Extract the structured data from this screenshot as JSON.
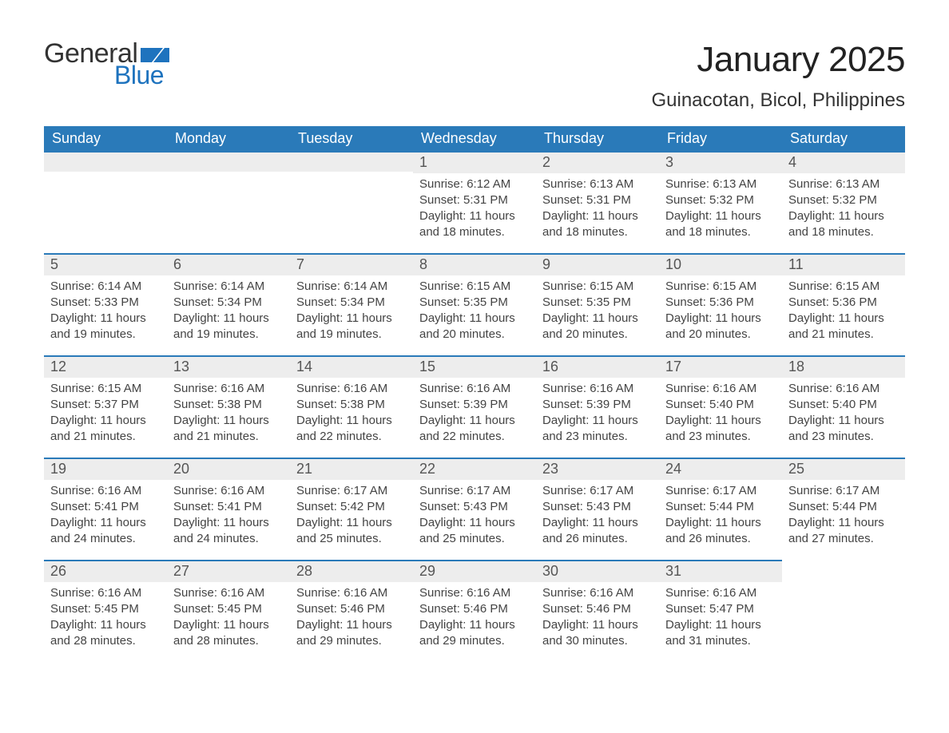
{
  "brand": {
    "word1": "General",
    "word2": "Blue",
    "flag_color": "#1e73be",
    "text_color": "#333333"
  },
  "header": {
    "title": "January 2025",
    "location": "Guinacotan, Bicol, Philippines"
  },
  "styling": {
    "header_bg": "#2a7ab9",
    "header_text": "#ffffff",
    "daybar_bg": "#ededed",
    "daybar_border": "#2a7ab9",
    "body_text": "#444444",
    "page_bg": "#ffffff",
    "font_family": "Helvetica Neue, Helvetica, Arial, sans-serif",
    "title_fontsize_pt": 33,
    "subtitle_fontsize_pt": 18,
    "weekday_fontsize_pt": 14,
    "daynum_fontsize_pt": 14,
    "body_fontsize_pt": 11
  },
  "calendar": {
    "weekday_labels": [
      "Sunday",
      "Monday",
      "Tuesday",
      "Wednesday",
      "Thursday",
      "Friday",
      "Saturday"
    ],
    "weeks": [
      [
        {
          "empty": true
        },
        {
          "empty": true
        },
        {
          "empty": true
        },
        {
          "day": "1",
          "sunrise": "Sunrise: 6:12 AM",
          "sunset": "Sunset: 5:31 PM",
          "daylight1": "Daylight: 11 hours",
          "daylight2": "and 18 minutes."
        },
        {
          "day": "2",
          "sunrise": "Sunrise: 6:13 AM",
          "sunset": "Sunset: 5:31 PM",
          "daylight1": "Daylight: 11 hours",
          "daylight2": "and 18 minutes."
        },
        {
          "day": "3",
          "sunrise": "Sunrise: 6:13 AM",
          "sunset": "Sunset: 5:32 PM",
          "daylight1": "Daylight: 11 hours",
          "daylight2": "and 18 minutes."
        },
        {
          "day": "4",
          "sunrise": "Sunrise: 6:13 AM",
          "sunset": "Sunset: 5:32 PM",
          "daylight1": "Daylight: 11 hours",
          "daylight2": "and 18 minutes."
        }
      ],
      [
        {
          "day": "5",
          "sunrise": "Sunrise: 6:14 AM",
          "sunset": "Sunset: 5:33 PM",
          "daylight1": "Daylight: 11 hours",
          "daylight2": "and 19 minutes."
        },
        {
          "day": "6",
          "sunrise": "Sunrise: 6:14 AM",
          "sunset": "Sunset: 5:34 PM",
          "daylight1": "Daylight: 11 hours",
          "daylight2": "and 19 minutes."
        },
        {
          "day": "7",
          "sunrise": "Sunrise: 6:14 AM",
          "sunset": "Sunset: 5:34 PM",
          "daylight1": "Daylight: 11 hours",
          "daylight2": "and 19 minutes."
        },
        {
          "day": "8",
          "sunrise": "Sunrise: 6:15 AM",
          "sunset": "Sunset: 5:35 PM",
          "daylight1": "Daylight: 11 hours",
          "daylight2": "and 20 minutes."
        },
        {
          "day": "9",
          "sunrise": "Sunrise: 6:15 AM",
          "sunset": "Sunset: 5:35 PM",
          "daylight1": "Daylight: 11 hours",
          "daylight2": "and 20 minutes."
        },
        {
          "day": "10",
          "sunrise": "Sunrise: 6:15 AM",
          "sunset": "Sunset: 5:36 PM",
          "daylight1": "Daylight: 11 hours",
          "daylight2": "and 20 minutes."
        },
        {
          "day": "11",
          "sunrise": "Sunrise: 6:15 AM",
          "sunset": "Sunset: 5:36 PM",
          "daylight1": "Daylight: 11 hours",
          "daylight2": "and 21 minutes."
        }
      ],
      [
        {
          "day": "12",
          "sunrise": "Sunrise: 6:15 AM",
          "sunset": "Sunset: 5:37 PM",
          "daylight1": "Daylight: 11 hours",
          "daylight2": "and 21 minutes."
        },
        {
          "day": "13",
          "sunrise": "Sunrise: 6:16 AM",
          "sunset": "Sunset: 5:38 PM",
          "daylight1": "Daylight: 11 hours",
          "daylight2": "and 21 minutes."
        },
        {
          "day": "14",
          "sunrise": "Sunrise: 6:16 AM",
          "sunset": "Sunset: 5:38 PM",
          "daylight1": "Daylight: 11 hours",
          "daylight2": "and 22 minutes."
        },
        {
          "day": "15",
          "sunrise": "Sunrise: 6:16 AM",
          "sunset": "Sunset: 5:39 PM",
          "daylight1": "Daylight: 11 hours",
          "daylight2": "and 22 minutes."
        },
        {
          "day": "16",
          "sunrise": "Sunrise: 6:16 AM",
          "sunset": "Sunset: 5:39 PM",
          "daylight1": "Daylight: 11 hours",
          "daylight2": "and 23 minutes."
        },
        {
          "day": "17",
          "sunrise": "Sunrise: 6:16 AM",
          "sunset": "Sunset: 5:40 PM",
          "daylight1": "Daylight: 11 hours",
          "daylight2": "and 23 minutes."
        },
        {
          "day": "18",
          "sunrise": "Sunrise: 6:16 AM",
          "sunset": "Sunset: 5:40 PM",
          "daylight1": "Daylight: 11 hours",
          "daylight2": "and 23 minutes."
        }
      ],
      [
        {
          "day": "19",
          "sunrise": "Sunrise: 6:16 AM",
          "sunset": "Sunset: 5:41 PM",
          "daylight1": "Daylight: 11 hours",
          "daylight2": "and 24 minutes."
        },
        {
          "day": "20",
          "sunrise": "Sunrise: 6:16 AM",
          "sunset": "Sunset: 5:41 PM",
          "daylight1": "Daylight: 11 hours",
          "daylight2": "and 24 minutes."
        },
        {
          "day": "21",
          "sunrise": "Sunrise: 6:17 AM",
          "sunset": "Sunset: 5:42 PM",
          "daylight1": "Daylight: 11 hours",
          "daylight2": "and 25 minutes."
        },
        {
          "day": "22",
          "sunrise": "Sunrise: 6:17 AM",
          "sunset": "Sunset: 5:43 PM",
          "daylight1": "Daylight: 11 hours",
          "daylight2": "and 25 minutes."
        },
        {
          "day": "23",
          "sunrise": "Sunrise: 6:17 AM",
          "sunset": "Sunset: 5:43 PM",
          "daylight1": "Daylight: 11 hours",
          "daylight2": "and 26 minutes."
        },
        {
          "day": "24",
          "sunrise": "Sunrise: 6:17 AM",
          "sunset": "Sunset: 5:44 PM",
          "daylight1": "Daylight: 11 hours",
          "daylight2": "and 26 minutes."
        },
        {
          "day": "25",
          "sunrise": "Sunrise: 6:17 AM",
          "sunset": "Sunset: 5:44 PM",
          "daylight1": "Daylight: 11 hours",
          "daylight2": "and 27 minutes."
        }
      ],
      [
        {
          "day": "26",
          "sunrise": "Sunrise: 6:16 AM",
          "sunset": "Sunset: 5:45 PM",
          "daylight1": "Daylight: 11 hours",
          "daylight2": "and 28 minutes."
        },
        {
          "day": "27",
          "sunrise": "Sunrise: 6:16 AM",
          "sunset": "Sunset: 5:45 PM",
          "daylight1": "Daylight: 11 hours",
          "daylight2": "and 28 minutes."
        },
        {
          "day": "28",
          "sunrise": "Sunrise: 6:16 AM",
          "sunset": "Sunset: 5:46 PM",
          "daylight1": "Daylight: 11 hours",
          "daylight2": "and 29 minutes."
        },
        {
          "day": "29",
          "sunrise": "Sunrise: 6:16 AM",
          "sunset": "Sunset: 5:46 PM",
          "daylight1": "Daylight: 11 hours",
          "daylight2": "and 29 minutes."
        },
        {
          "day": "30",
          "sunrise": "Sunrise: 6:16 AM",
          "sunset": "Sunset: 5:46 PM",
          "daylight1": "Daylight: 11 hours",
          "daylight2": "and 30 minutes."
        },
        {
          "day": "31",
          "sunrise": "Sunrise: 6:16 AM",
          "sunset": "Sunset: 5:47 PM",
          "daylight1": "Daylight: 11 hours",
          "daylight2": "and 31 minutes."
        },
        {
          "empty": true,
          "no_bar": true
        }
      ]
    ]
  }
}
